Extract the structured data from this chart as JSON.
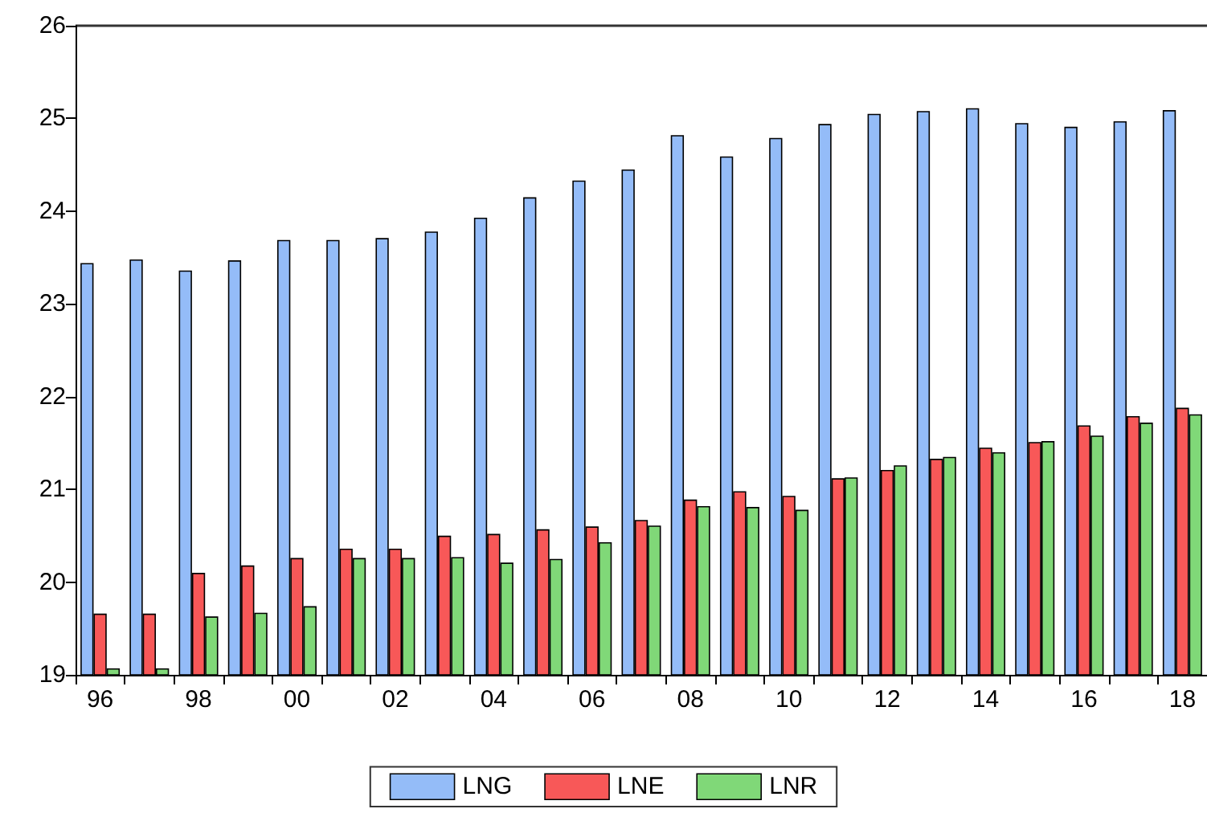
{
  "chart_data": {
    "type": "bar",
    "categories": [
      "96",
      null,
      "98",
      null,
      "00",
      null,
      "02",
      null,
      "04",
      null,
      "06",
      null,
      "08",
      null,
      "10",
      null,
      "12",
      null,
      "14",
      null,
      "16",
      null,
      "18"
    ],
    "series": [
      {
        "name": "LNG",
        "color": "#94bcf8",
        "values": [
          23.44,
          23.48,
          23.36,
          23.47,
          23.69,
          23.69,
          23.71,
          23.78,
          23.93,
          24.15,
          24.33,
          24.45,
          24.82,
          24.59,
          24.79,
          24.94,
          25.05,
          25.08,
          25.11,
          24.95,
          24.91,
          24.97,
          25.09
        ]
      },
      {
        "name": "LNE",
        "color": "#f85858",
        "values": [
          19.66,
          19.66,
          20.1,
          20.18,
          20.26,
          20.36,
          20.36,
          20.5,
          20.52,
          20.57,
          20.6,
          20.67,
          20.89,
          20.98,
          20.93,
          21.12,
          21.21,
          21.33,
          21.45,
          21.51,
          21.69,
          21.79,
          21.88
        ]
      },
      {
        "name": "LNR",
        "color": "#80d878",
        "values": [
          19.07,
          19.07,
          19.63,
          19.67,
          19.74,
          20.26,
          20.26,
          20.27,
          20.21,
          20.25,
          20.43,
          20.61,
          20.82,
          20.81,
          20.78,
          21.13,
          21.26,
          21.35,
          21.4,
          21.52,
          21.58,
          21.72,
          21.81
        ]
      }
    ],
    "ylim": [
      19,
      26
    ],
    "yticks": [
      19,
      20,
      21,
      22,
      23,
      24,
      25,
      26
    ],
    "grid": false,
    "legend": "bottom"
  }
}
